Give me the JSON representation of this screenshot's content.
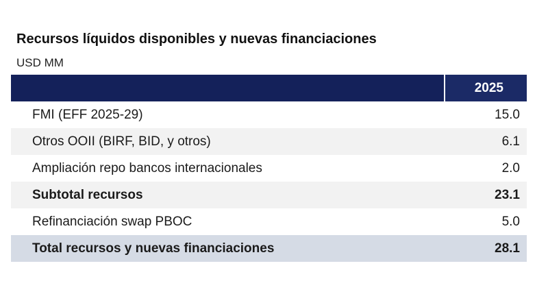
{
  "title": "Recursos líquidos disponibles y nuevas financiaciones",
  "unit": "USD MM",
  "table": {
    "column_header": "2025",
    "rows": [
      {
        "label": "FMI (EFF 2025-29)",
        "value": "15.0",
        "bold": false
      },
      {
        "label": "Otros OOII (BIRF, BID, y otros)",
        "value": "6.1",
        "bold": false
      },
      {
        "label": "Ampliación repo bancos internacionales",
        "value": "2.0",
        "bold": false
      },
      {
        "label": "Subtotal recursos",
        "value": "23.1",
        "bold": true
      },
      {
        "label": "Refinanciación swap PBOC",
        "value": "5.0",
        "bold": false
      },
      {
        "label": "Total recursos y nuevas financiaciones",
        "value": "28.1",
        "bold": true
      }
    ]
  },
  "colors": {
    "header_bg": "#14215a",
    "header_year_bg": "#1b2a66",
    "stripe_bg": "#f2f2f2",
    "total_bg": "#d5dbe5"
  }
}
